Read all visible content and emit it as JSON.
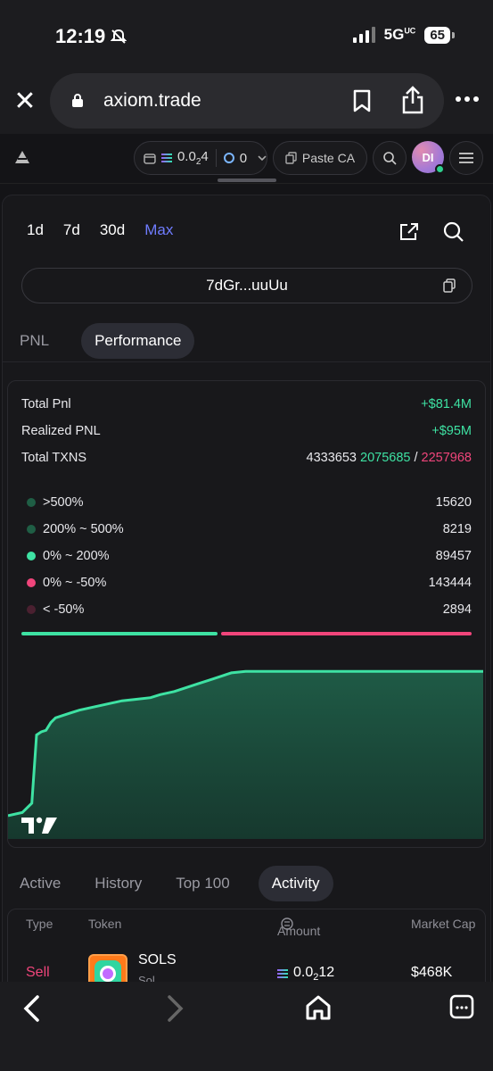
{
  "status_bar": {
    "time": "12:19",
    "network": "5G",
    "network_sup": "UC",
    "battery": "65"
  },
  "browser": {
    "url": "axiom.trade"
  },
  "app_header": {
    "wallet_sol_main": "0.0",
    "wallet_sol_sub": "2",
    "wallet_sol_end": "4",
    "wallet_count": "0",
    "paste_label": "Paste CA",
    "avatar_initials": "DI"
  },
  "ranges": [
    "1d",
    "7d",
    "30d",
    "Max"
  ],
  "active_range": "Max",
  "address": "7dGr...uuUu",
  "subtabs": {
    "pnl": "PNL",
    "performance": "Performance"
  },
  "stats": {
    "total_pnl_label": "Total Pnl",
    "total_pnl_value": "+$81.4M",
    "realized_label": "Realized PNL",
    "realized_value": "+$95M",
    "txns_label": "Total TXNS",
    "txns_total": "4333653",
    "txns_buy": "2075685",
    "txns_sep": "/",
    "txns_sell": "2257968"
  },
  "distribution": [
    {
      "label": ">500%",
      "value": "15620",
      "color": "#1f5e45"
    },
    {
      "label": "200% ~ 500%",
      "value": "8219",
      "color": "#1f5e45"
    },
    {
      "label": "0% ~ 200%",
      "value": "89457",
      "color": "#3ee2a3"
    },
    {
      "label": "0% ~ -50%",
      "value": "143444",
      "color": "#f0457b"
    },
    {
      "label": "< -50%",
      "value": "2894",
      "color": "#4a2030"
    }
  ],
  "ratio": {
    "green_fraction": 0.44
  },
  "chart_data": {
    "type": "area",
    "title": "",
    "xlabel": "",
    "ylabel": "",
    "x": [
      0,
      3,
      4,
      5,
      6,
      7,
      8,
      9,
      10,
      11,
      13,
      15,
      18,
      21,
      24,
      27,
      30,
      32,
      35,
      37,
      40,
      43,
      45,
      47,
      50,
      55,
      60,
      65,
      70,
      75,
      80,
      85,
      90,
      95,
      100
    ],
    "y": [
      0,
      2,
      5,
      8,
      52,
      54,
      55,
      60,
      63,
      64,
      66,
      68,
      70,
      72,
      74,
      75,
      76,
      78,
      80,
      82,
      85,
      88,
      90,
      92,
      93,
      93,
      93,
      93,
      93,
      93,
      93,
      93,
      93,
      93,
      93
    ],
    "ylim": [
      -15,
      100
    ],
    "color": "#3ee2a3"
  },
  "bottom_tabs": {
    "active": "Active",
    "history": "History",
    "top100": "Top 100",
    "activity": "Activity"
  },
  "table": {
    "headers": {
      "type": "Type",
      "token": "Token",
      "amount": "Amount",
      "market_cap": "Market Cap"
    },
    "rows": [
      {
        "type": "Sell",
        "token": "SOLS",
        "sub": "Sol...",
        "amount_main": "0.0",
        "amount_sub": "2",
        "amount_end": "12",
        "market_cap": "$468K"
      }
    ]
  }
}
